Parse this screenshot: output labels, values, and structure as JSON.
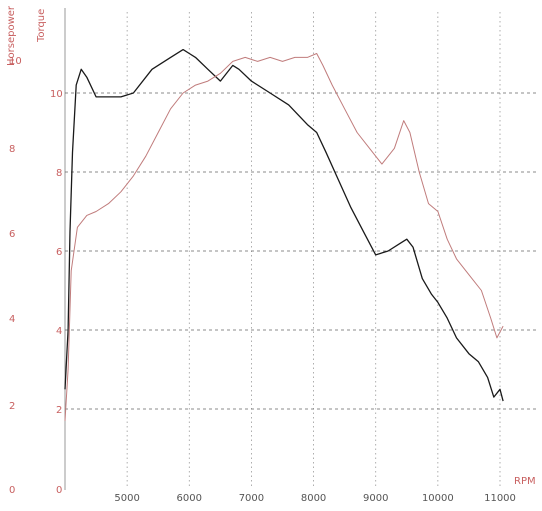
{
  "chart_data": {
    "type": "line",
    "title": "",
    "xlabel": "RPM",
    "ylabel_left": "Horsepower",
    "ylabel_right": "Torque",
    "xlim": [
      4000,
      11500
    ],
    "x_ticks": [
      5000,
      6000,
      7000,
      8000,
      9000,
      10000,
      11000
    ],
    "ylim_left": [
      0,
      12
    ],
    "y_ticks_left": [
      0,
      2,
      4,
      6,
      8,
      10
    ],
    "ylim_right": [
      0,
      12
    ],
    "y_ticks_right": [
      0,
      2,
      4,
      6,
      8,
      10
    ],
    "grid": true,
    "colors": {
      "torque": "#c07c7c",
      "hp": "#1a1a1a",
      "grid": "#9a9a9a",
      "hgrid": "#666666",
      "axis_label": "#c86060"
    },
    "series": [
      {
        "axis": "right",
        "color": "#1a1a1a",
        "x": [
          4000,
          4050,
          4080,
          4120,
          4180,
          4260,
          4350,
          4500,
          4700,
          4900,
          5100,
          5400,
          5700,
          5900,
          6000,
          6100,
          6300,
          6500,
          6700,
          6800,
          7000,
          7300,
          7600,
          7900,
          8050,
          8200,
          8400,
          8600,
          8800,
          9000,
          9200,
          9400,
          9500,
          9600,
          9750,
          9900,
          10000,
          10150,
          10300,
          10500,
          10650,
          10800,
          10900,
          11000,
          11050
        ],
        "y": [
          2.5,
          4.0,
          6.5,
          8.5,
          10.2,
          10.6,
          10.4,
          9.9,
          9.9,
          9.9,
          10.0,
          10.6,
          10.9,
          11.1,
          11.0,
          10.9,
          10.6,
          10.3,
          10.7,
          10.6,
          10.3,
          10.0,
          9.7,
          9.2,
          9.0,
          8.5,
          7.8,
          7.1,
          6.5,
          5.9,
          6.0,
          6.2,
          6.3,
          6.1,
          5.3,
          4.9,
          4.7,
          4.3,
          3.8,
          3.4,
          3.2,
          2.8,
          2.3,
          2.5,
          2.2
        ]
      },
      {
        "axis": "right",
        "color": "#c07c7c",
        "x": [
          4000,
          4050,
          4100,
          4200,
          4350,
          4500,
          4700,
          4900,
          5100,
          5300,
          5500,
          5700,
          5900,
          6100,
          6300,
          6500,
          6700,
          6900,
          7100,
          7300,
          7500,
          7700,
          7900,
          8050,
          8150,
          8300,
          8500,
          8700,
          8900,
          9100,
          9300,
          9450,
          9550,
          9700,
          9850,
          10000,
          10150,
          10300,
          10500,
          10700,
          10850,
          10950,
          11050
        ],
        "y": [
          1.7,
          3.0,
          5.5,
          6.6,
          6.9,
          7.0,
          7.2,
          7.5,
          7.9,
          8.4,
          9.0,
          9.6,
          10.0,
          10.2,
          10.3,
          10.5,
          10.8,
          10.9,
          10.8,
          10.9,
          10.8,
          10.9,
          10.9,
          11.0,
          10.7,
          10.2,
          9.6,
          9.0,
          8.6,
          8.2,
          8.6,
          9.3,
          9.0,
          8.0,
          7.2,
          7.0,
          6.3,
          5.8,
          5.4,
          5.0,
          4.3,
          3.8,
          4.1
        ]
      }
    ]
  }
}
